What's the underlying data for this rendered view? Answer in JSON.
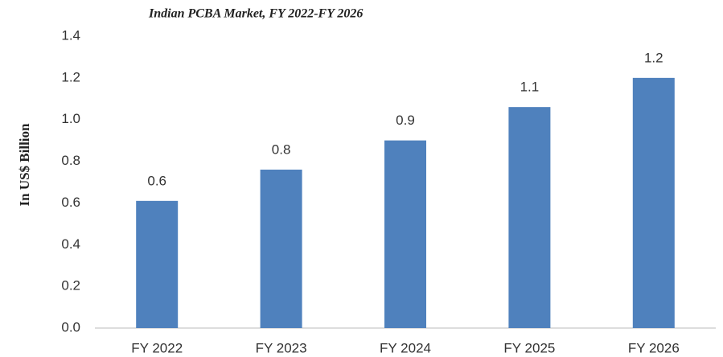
{
  "chart_data": {
    "type": "bar",
    "title": "Indian PCBA Market, FY 2022-FY 2026",
    "y_label": "In US$ Billion",
    "categories": [
      "FY 2022",
      "FY 2023",
      "FY 2024",
      "FY 2025",
      "FY 2026"
    ],
    "values": [
      0.61,
      0.76,
      0.9,
      1.06,
      1.2
    ],
    "value_labels": [
      "0.6",
      "0.8",
      "0.9",
      "1.1",
      "1.2"
    ],
    "color": "#4f81bd",
    "ylim": [
      0,
      1.4
    ],
    "yticks": [
      {
        "value": 0,
        "label": "0.0"
      },
      0.2,
      0.4,
      0.6,
      0.8,
      {
        "value": 1,
        "label": "1.0"
      },
      1.2,
      1.4
    ],
    "grid": false
  }
}
